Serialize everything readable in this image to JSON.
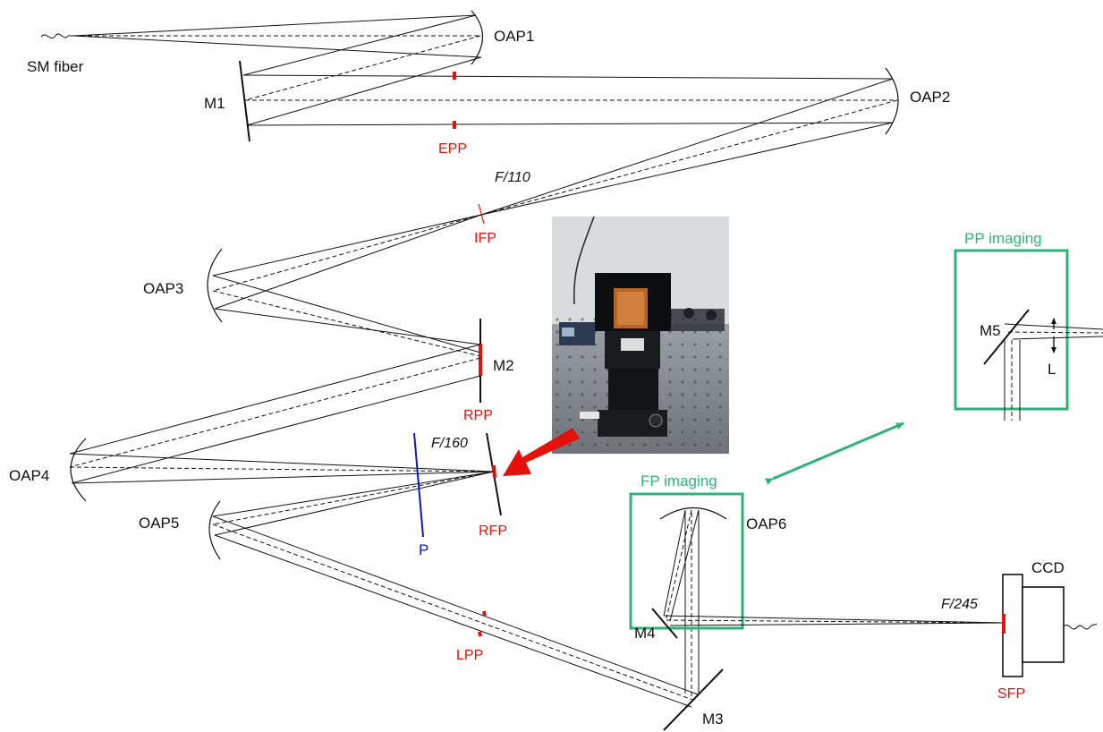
{
  "labels": {
    "sm_fiber": "SM fiber",
    "oap1": "OAP1",
    "oap2": "OAP2",
    "oap3": "OAP3",
    "oap4": "OAP4",
    "oap5": "OAP5",
    "oap6": "OAP6",
    "m1": "M1",
    "m2": "M2",
    "m3": "M3",
    "m4": "M4",
    "m5": "M5",
    "lens": "L",
    "polarizer": "P",
    "ccd": "CCD"
  },
  "plane_labels": {
    "epp": "EPP",
    "ifp": "IFP",
    "rpp": "RPP",
    "rfp": "RFP",
    "lpp": "LPP",
    "sfp": "SFP"
  },
  "focal_ratios": {
    "f110": "F/110",
    "f160": "F/160",
    "f245": "F/245"
  },
  "modules": {
    "pp_imaging": "PP imaging",
    "fp_imaging": "FP imaging"
  },
  "colors": {
    "plane_marker": "#e3120b",
    "module_box": "#2db37a",
    "polarizer": "#1111cc",
    "pointer_arrow": "#e3120b"
  },
  "photo": {
    "description_icon": "lab-bench-photo"
  }
}
